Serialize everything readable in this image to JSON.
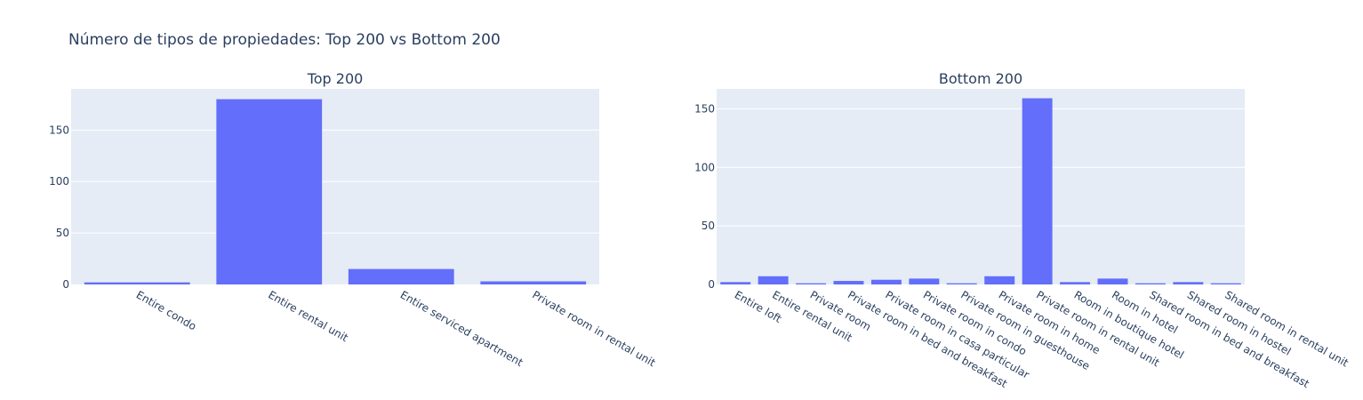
{
  "title": "Número de tipos de propiedades: Top 200 vs Bottom 200",
  "colors": {
    "bar": "#636efa",
    "plot_bg": "#e5ecf6",
    "grid": "#ffffff",
    "text": "#2a3f5f"
  },
  "chart_data": [
    {
      "type": "bar",
      "title": "Top 200",
      "categories": [
        "Entire condo",
        "Entire rental unit",
        "Entire serviced apartment",
        "Private room in rental unit"
      ],
      "values": [
        2,
        180,
        15,
        3
      ],
      "ylim": [
        0,
        190
      ],
      "yticks": [
        0,
        50,
        100,
        150
      ],
      "grid": true
    },
    {
      "type": "bar",
      "title": "Bottom 200",
      "categories": [
        "Entire loft",
        "Entire rental unit",
        "Private room",
        "Private room in bed and breakfast",
        "Private room in casa particular",
        "Private room in condo",
        "Private room in guesthouse",
        "Private room in home",
        "Private room in rental unit",
        "Room in boutique hotel",
        "Room in hotel",
        "Shared room in bed and breakfast",
        "Shared room in hostel",
        "Shared room in rental unit"
      ],
      "values": [
        2,
        7,
        1,
        3,
        4,
        5,
        1,
        7,
        159,
        2,
        5,
        1,
        2,
        1
      ],
      "ylim": [
        0,
        167
      ],
      "yticks": [
        0,
        50,
        100,
        150
      ],
      "grid": true
    }
  ]
}
